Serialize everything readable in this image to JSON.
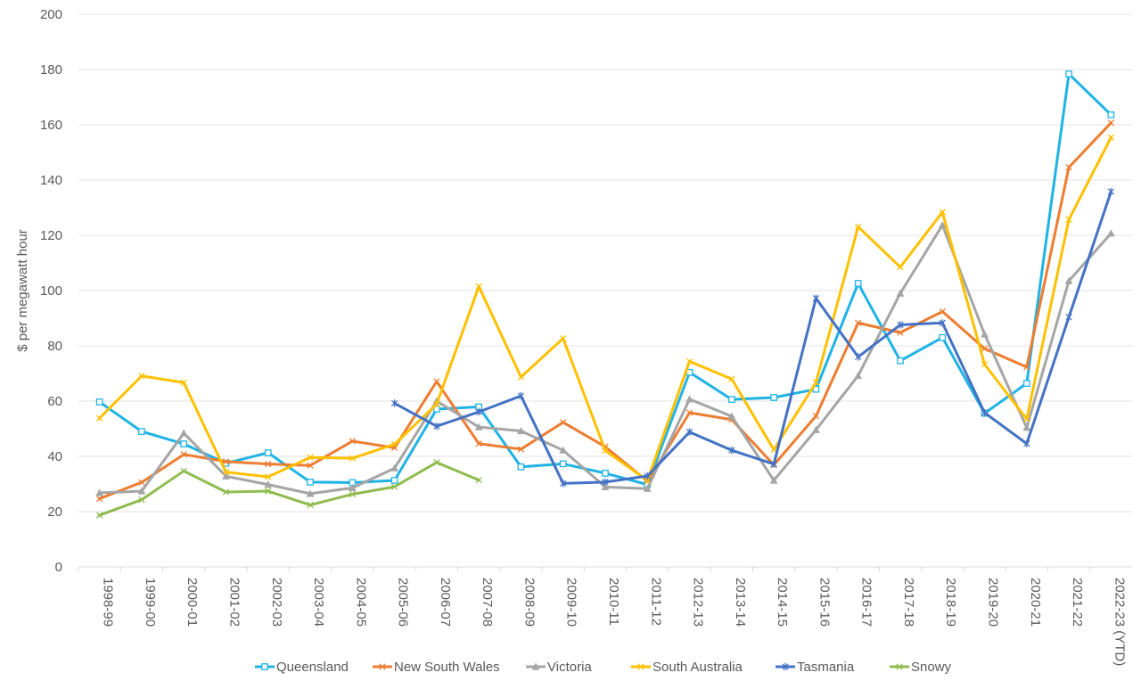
{
  "chart_data": {
    "type": "line",
    "title": "",
    "xlabel": "",
    "ylabel": "$ per megawatt hour",
    "ylim": [
      0,
      200
    ],
    "yticks": [
      "0",
      "20",
      "40",
      "60",
      "80",
      "100",
      "120",
      "140",
      "160",
      "180",
      "200"
    ],
    "grid": "horizontal",
    "legend_position": "bottom",
    "categories": [
      "1998-99",
      "1999-00",
      "2000-01",
      "2001-02",
      "2002-03",
      "2003-04",
      "2004-05",
      "2005-06",
      "2006-07",
      "2007-08",
      "2008-09",
      "2009-10",
      "2010-11",
      "2011-12",
      "2012-13",
      "2013-14",
      "2014-15",
      "2015-16",
      "2016-17",
      "2017-18",
      "2018-19",
      "2019-20",
      "2020-21",
      "2021-22",
      "2022-23 (YTD)"
    ],
    "series": [
      {
        "name": "Queensland",
        "color": "#1fb3e5",
        "marker": "square",
        "values": [
          59.7,
          49.0,
          44.5,
          37.5,
          41.3,
          30.7,
          30.5,
          31.3,
          57.1,
          57.9,
          36.2,
          37.3,
          33.9,
          29.8,
          70.4,
          60.6,
          61.3,
          64.3,
          102.6,
          74.6,
          83.0,
          55.6,
          66.4,
          178.4,
          163.6
        ]
      },
      {
        "name": "New South Wales",
        "color": "#ed7d31",
        "marker": "x",
        "values": [
          24.7,
          30.6,
          40.7,
          38.1,
          37.2,
          36.7,
          45.5,
          43.1,
          67.1,
          44.6,
          42.6,
          52.3,
          43.5,
          31.0,
          55.8,
          53.3,
          36.9,
          54.6,
          88.3,
          84.8,
          92.4,
          79.0,
          72.3,
          144.6,
          160.7
        ]
      },
      {
        "name": "Victoria",
        "color": "#a5a5a5",
        "marker": "triangle",
        "values": [
          26.8,
          27.4,
          48.4,
          32.8,
          29.8,
          26.5,
          28.6,
          35.7,
          60.0,
          50.6,
          49.2,
          42.2,
          28.9,
          28.3,
          60.7,
          54.5,
          31.3,
          49.6,
          69.2,
          99.0,
          123.7,
          84.2,
          50.4,
          103.5,
          120.7
        ]
      },
      {
        "name": "South Australia",
        "color": "#ffc000",
        "marker": "x",
        "values": [
          53.8,
          69.1,
          66.7,
          34.3,
          32.6,
          39.6,
          39.3,
          44.4,
          58.9,
          101.5,
          68.7,
          82.7,
          42.1,
          31.3,
          74.4,
          68.0,
          42.4,
          66.8,
          123.1,
          108.5,
          128.4,
          73.3,
          53.5,
          125.7,
          155.4
        ]
      },
      {
        "name": "Tasmania",
        "color": "#4472c4",
        "marker": "star",
        "values": [
          null,
          null,
          null,
          null,
          null,
          null,
          null,
          59.2,
          50.9,
          56.1,
          61.9,
          30.2,
          30.7,
          32.9,
          48.8,
          42.2,
          37.2,
          97.2,
          76.0,
          87.6,
          88.3,
          55.8,
          44.6,
          90.4,
          135.8
        ]
      },
      {
        "name": "Snowy",
        "color": "#8fbc4f",
        "marker": "x",
        "values": [
          18.7,
          24.3,
          34.7,
          27.1,
          27.4,
          22.4,
          26.3,
          29.0,
          37.8,
          31.4,
          null,
          null,
          null,
          null,
          null,
          null,
          null,
          null,
          null,
          null,
          null,
          null,
          null,
          null,
          null
        ]
      }
    ]
  }
}
